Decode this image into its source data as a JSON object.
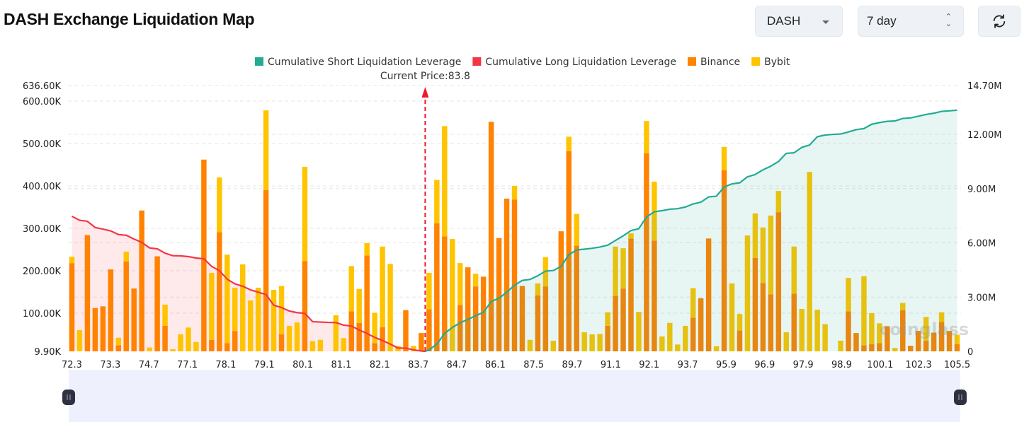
{
  "header": {
    "title": "DASH Exchange Liquidation Map",
    "coin_select": {
      "value": "DASH",
      "icon": "caret-down-icon"
    },
    "range_select": {
      "value": "7 day",
      "icon": "up-down-arrows-icon"
    },
    "refresh_button": {
      "icon": "refresh-icon"
    }
  },
  "watermark": "coinglass",
  "chart_data": {
    "type": "bar",
    "stacked": true,
    "legend_position": "top",
    "legend": [
      {
        "name": "Cumulative Short Liquidation Leverage",
        "color": "#22ab94"
      },
      {
        "name": "Cumulative Long Liquidation Leverage",
        "color": "#f23645"
      },
      {
        "name": "Binance",
        "color": "#ff8200"
      },
      {
        "name": "Bybit",
        "color": "#ffc400"
      }
    ],
    "current_price_label": "Current Price:83.8",
    "current_price": 83.8,
    "x_tick_labels": [
      "72.3",
      "73.3",
      "74.7",
      "77.1",
      "78.1",
      "79.1",
      "80.1",
      "81.1",
      "82.1",
      "83.7",
      "84.7",
      "86.1",
      "87.5",
      "89.7",
      "91.1",
      "92.1",
      "93.7",
      "95.9",
      "96.9",
      "97.9",
      "98.9",
      "100.1",
      "102.3",
      "105.5"
    ],
    "y_left": {
      "ticks": [
        "636.60K",
        "600.00K",
        "500.00K",
        "400.00K",
        "300.00K",
        "200.00K",
        "100.00K",
        "9.90K"
      ],
      "tick_values": [
        636.6,
        600,
        500,
        400,
        300,
        200,
        100,
        9.9
      ],
      "unit": "K",
      "range": [
        9.9,
        636.6
      ]
    },
    "y_right": {
      "ticks": [
        "14.70M",
        "12.00M",
        "9.00M",
        "6.00M",
        "3.00M",
        "0"
      ],
      "tick_values": [
        14.7,
        12,
        9,
        6,
        3,
        0
      ],
      "unit": "M",
      "range": [
        0,
        14.7
      ]
    },
    "grid": true,
    "series": [
      {
        "name": "Binance",
        "axis": "left",
        "values": [
          218,
          0,
          284,
          112,
          116,
          203,
          24,
          222,
          158,
          342,
          0,
          234,
          70,
          0,
          0,
          0,
          0,
          462,
          37,
          291,
          29,
          58,
          0,
          0,
          0,
          390,
          0,
          50,
          0,
          0,
          223,
          0,
          0,
          0,
          0,
          0,
          104,
          77,
          236,
          29,
          67,
          0,
          0,
          107,
          0,
          53,
          109,
          312,
          281,
          0,
          119,
          208,
          163,
          186,
          551,
          277,
          370,
          368,
          164,
          0,
          142,
          163,
          0,
          293,
          482,
          259,
          0,
          0,
          0,
          70,
          141,
          158,
          276,
          0,
          477,
          271,
          0,
          0,
          0,
          0,
          89,
          135,
          276,
          0,
          437,
          0,
          59,
          0,
          230,
          171,
          144,
          338,
          0,
          146,
          0,
          0,
          0,
          0,
          0,
          0,
          104,
          53,
          24,
          27,
          29,
          69,
          0,
          107,
          23,
          58,
          35,
          54,
          79,
          58,
          27
        ]
      },
      {
        "name": "Bybit",
        "axis": "left",
        "values": [
          15,
          60,
          0,
          0,
          0,
          0,
          18,
          23,
          0,
          0,
          19,
          0,
          50,
          15,
          50,
          66,
          32,
          0,
          158,
          129,
          209,
          102,
          215,
          130,
          160,
          188,
          155,
          114,
          70,
          78,
          222,
          34,
          37,
          0,
          95,
          41,
          107,
          80,
          29,
          72,
          190,
          216,
          23,
          0,
          23,
          0,
          86,
          102,
          260,
          275,
          99,
          0,
          30,
          0,
          0,
          0,
          0,
          32,
          0,
          37,
          28,
          69,
          35,
          0,
          34,
          75,
          55,
          50,
          51,
          32,
          116,
          95,
          12,
          103,
          76,
          139,
          45,
          77,
          26,
          70,
          70,
          0,
          0,
          22,
          55,
          170,
          39,
          283,
          105,
          131,
          186,
          50,
          55,
          111,
          110,
          433,
          108,
          74,
          0,
          35,
          79,
          0,
          163,
          73,
          47,
          0,
          18,
          17,
          0,
          0,
          56,
          0,
          23,
          0,
          22
        ]
      },
      {
        "name": "Cumulative Long Liquidation Leverage",
        "axis": "right",
        "values": [
          7.47,
          7.25,
          7.19,
          6.85,
          6.76,
          6.66,
          6.46,
          6.42,
          6.21,
          6.03,
          5.72,
          5.67,
          5.43,
          5.29,
          5.28,
          5.24,
          5.16,
          5.12,
          4.7,
          4.46,
          3.99,
          3.73,
          3.6,
          3.4,
          3.27,
          3.14,
          2.55,
          2.42,
          2.23,
          2.14,
          2.1,
          1.64,
          1.62,
          1.6,
          1.59,
          1.45,
          1.4,
          1.18,
          0.99,
          0.77,
          0.6,
          0.4,
          0.18,
          0.18,
          0.08,
          0.02
        ]
      },
      {
        "name": "Cumulative Short Liquidation Leverage",
        "axis": "right",
        "values": [
          0.08,
          0.4,
          0.99,
          1.32,
          1.58,
          1.77,
          1.97,
          2.16,
          2.75,
          2.94,
          3.27,
          3.66,
          3.92,
          3.98,
          4.18,
          4.44,
          4.47,
          4.7,
          5.35,
          5.61,
          5.65,
          5.7,
          5.77,
          5.87,
          6.13,
          6.39,
          6.68,
          6.78,
          7.43,
          7.72,
          7.78,
          7.86,
          7.89,
          7.98,
          8.15,
          8.25,
          8.54,
          8.58,
          9.09,
          9.26,
          9.32,
          9.65,
          9.78,
          10.04,
          10.24,
          10.5,
          10.95,
          10.98,
          11.28,
          11.41,
          11.87,
          11.96,
          12.0,
          12.02,
          12.13,
          12.26,
          12.32,
          12.56,
          12.65,
          12.72,
          12.74,
          12.88,
          12.91,
          13.0,
          13.1,
          13.17,
          13.27,
          13.3,
          13.34
        ]
      }
    ]
  }
}
